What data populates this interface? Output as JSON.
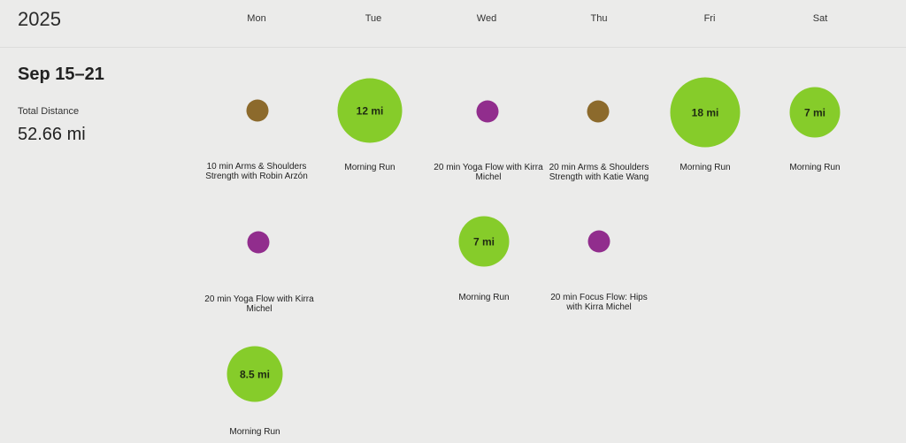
{
  "header": {
    "year": "2025"
  },
  "days": [
    "Mon",
    "Tue",
    "Wed",
    "Thu",
    "Fri",
    "Sat"
  ],
  "week": {
    "range": "Sep 15–21",
    "total_distance_label": "Total Distance",
    "total_distance_value": "52.66 mi"
  },
  "workouts": {
    "mon_1": {
      "label": "10 min Arms & Shoulders Strength with Robin Arzón",
      "type": "strength"
    },
    "mon_2": {
      "label": "20 min Yoga Flow with Kirra Michel",
      "type": "yoga"
    },
    "mon_3": {
      "label": "Morning Run",
      "distance": "8.5 mi",
      "type": "run"
    },
    "tue_1": {
      "label": "Morning Run",
      "distance": "12 mi",
      "type": "run"
    },
    "wed_1": {
      "label": "20 min Yoga Flow with Kirra Michel",
      "type": "yoga"
    },
    "wed_2": {
      "label": "Morning Run",
      "distance": "7 mi",
      "type": "run"
    },
    "thu_1": {
      "label": "20 min Arms & Shoulders Strength with Katie Wang",
      "type": "strength"
    },
    "thu_2": {
      "label": "20 min Focus Flow: Hips with Kirra Michel",
      "type": "yoga"
    },
    "fri_1": {
      "label": "Morning Run",
      "distance": "18 mi",
      "type": "run"
    },
    "sat_1": {
      "label": "Morning Run",
      "distance": "7 mi",
      "type": "run"
    }
  },
  "colors": {
    "run": "#86cc2a",
    "strength": "#8c6a2c",
    "yoga": "#912d8d",
    "background": "#ebebea"
  }
}
